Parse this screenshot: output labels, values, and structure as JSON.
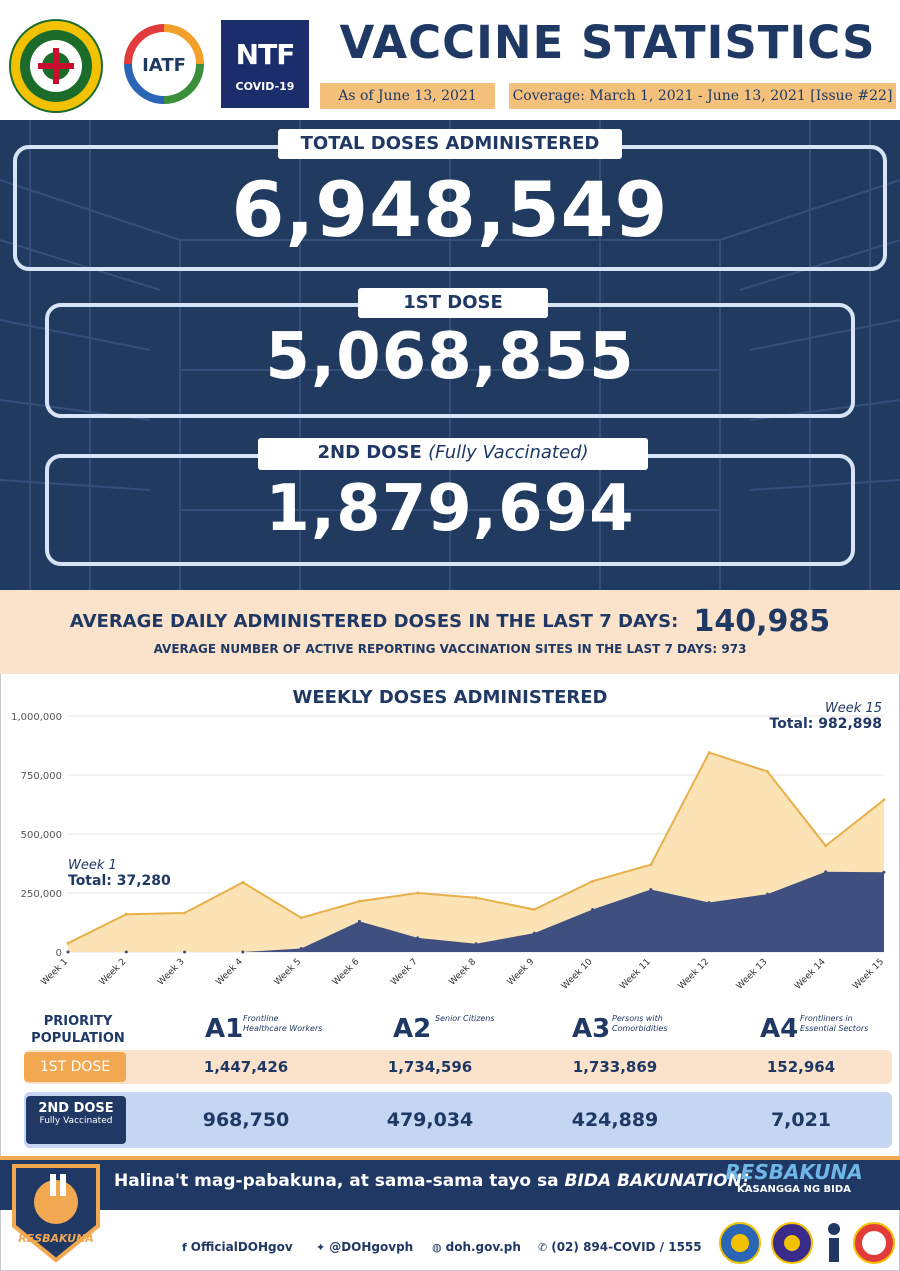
{
  "header": {
    "title": "VACCINE STATISTICS",
    "as_of": "As of June 13, 2021",
    "coverage": "Coverage: March 1, 2021 - June 13, 2021 [Issue #22]",
    "logos": {
      "doh": "REPUBLIC OF THE PHILIPPINES DEPARTMENT OF HEALTH",
      "iatf": "IATF",
      "ntf": "NTF",
      "ntf_sub": "COVID-19"
    }
  },
  "doses": {
    "total_label": "TOTAL DOSES ADMINISTERED",
    "total_value": "6,948,549",
    "first_label": "1ST DOSE",
    "first_value": "5,068,855",
    "second_label": "2ND DOSE",
    "second_label_note": "(Fully Vaccinated)",
    "second_value": "1,879,694"
  },
  "averages": {
    "daily_label": "AVERAGE DAILY ADMINISTERED DOSES IN THE LAST 7 DAYS:",
    "daily_value": "140,985",
    "sites_label": "AVERAGE NUMBER OF ACTIVE REPORTING VACCINATION SITES IN THE LAST 7 DAYS: 973"
  },
  "chart_data": {
    "type": "area",
    "title": "WEEKLY DOSES ADMINISTERED",
    "xlabel": "",
    "ylabel": "",
    "ylim": [
      0,
      1000000
    ],
    "y_ticks": [
      "0",
      "250,000",
      "500,000",
      "750,000",
      "1,000,000"
    ],
    "y_tick_values": [
      0,
      250000,
      500000,
      750000,
      1000000
    ],
    "categories": [
      "Week 1",
      "Week 2",
      "Week 3",
      "Week 4",
      "Week 5",
      "Week 6",
      "Week 7",
      "Week 8",
      "Week 9",
      "Week 10",
      "Week 11",
      "Week 12",
      "Week 13",
      "Week 14",
      "Week 15"
    ],
    "series": [
      {
        "values": [
          37280,
          160000,
          165000,
          295000,
          145000,
          215000,
          250000,
          230000,
          180000,
          300000,
          370000,
          845000,
          765000,
          450000,
          645000
        ],
        "color": "#fbe3b6",
        "stroke": "#e8b04a"
      },
      {
        "values": [
          0,
          0,
          0,
          0,
          15000,
          130000,
          60000,
          35000,
          80000,
          180000,
          265000,
          210000,
          245000,
          340000,
          338000
        ],
        "color": "#3f4f80",
        "stroke": "#3f4f80"
      }
    ],
    "stacked": true,
    "grid": true,
    "annotations": [
      {
        "week": "Week 1",
        "total": "Total: 37,280"
      },
      {
        "week": "Week 15",
        "total": "Total: 982,898"
      }
    ]
  },
  "priority": {
    "header": "PRIORITY POPULATION",
    "groups": [
      {
        "code": "A1",
        "desc": "Frontline Healthcare Workers",
        "first": "1,447,426",
        "second": "968,750"
      },
      {
        "code": "A2",
        "desc": "Senior Citizens",
        "first": "1,734,596",
        "second": "479,034"
      },
      {
        "code": "A3",
        "desc": "Persons with Comorbidities",
        "first": "1,733,869",
        "second": "424,889"
      },
      {
        "code": "A4",
        "desc": "Frontliners in Essential Sectors",
        "first": "152,964",
        "second": "7,021"
      }
    ],
    "first_tag": "1ST DOSE",
    "second_tag": "2ND DOSE",
    "second_tag_sub": "Fully Vaccinated"
  },
  "footer": {
    "slogan": "Halina't mag-pabakuna, at sama-sama tayo sa",
    "slogan_em": "BIDA BAKUNATION!",
    "brand": "RESBAKUNA",
    "brand_sub": "KASANGGA NG BIDA",
    "mascot_text": "RESBAKUNA",
    "contacts": {
      "facebook": "OfficialDOHgov",
      "twitter": "@DOHgovph",
      "web": "doh.gov.ph",
      "phone": "(02) 894-COVID  /  1555"
    },
    "colors": {
      "navy": "#1f3864",
      "orange": "#f2a850",
      "peach": "#fbe3cb"
    }
  }
}
